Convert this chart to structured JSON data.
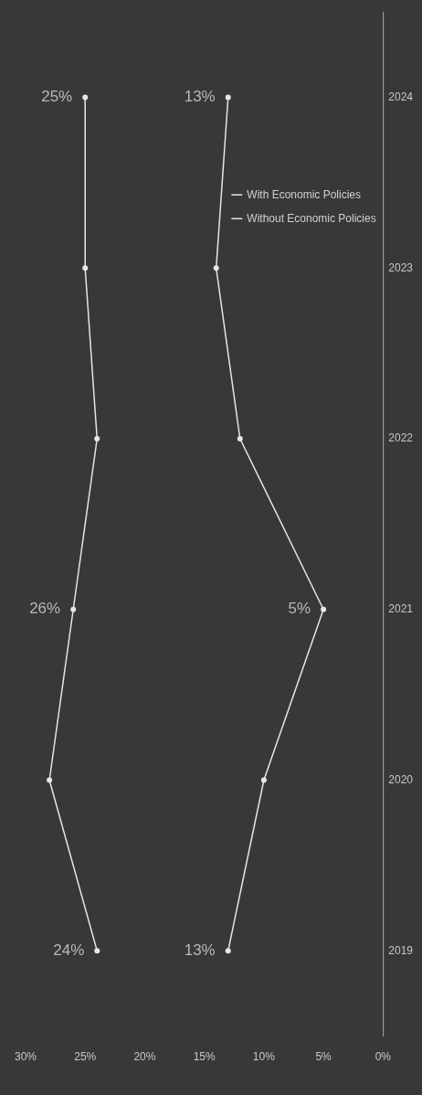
{
  "chart_data": {
    "type": "line",
    "orientation": "horizontal",
    "categories": [
      "2024",
      "2023",
      "2022",
      "2021",
      "2020",
      "2019"
    ],
    "series": [
      {
        "name": "With Economic Policies",
        "color": "#e6e6e6",
        "values": [
          25,
          25,
          24,
          26,
          28,
          24
        ],
        "value_labels": [
          "25%",
          null,
          null,
          "26%",
          null,
          "24%"
        ]
      },
      {
        "name": "Without Economic Policies",
        "color": "#e6e6e6",
        "values": [
          13,
          14,
          12,
          5,
          10,
          13
        ],
        "value_labels": [
          "13%",
          null,
          null,
          "5%",
          null,
          "13%"
        ]
      }
    ],
    "xlim": [
      30,
      0
    ],
    "xticks": [
      {
        "value": 30,
        "label": "30%"
      },
      {
        "value": 25,
        "label": "25%"
      },
      {
        "value": 20,
        "label": "20%"
      },
      {
        "value": 15,
        "label": "15%"
      },
      {
        "value": 10,
        "label": "10%"
      },
      {
        "value": 5,
        "label": "5%"
      },
      {
        "value": 0,
        "label": "0%"
      }
    ],
    "grid": false,
    "legend": "top right",
    "marker": "circle",
    "line_style": "solid"
  }
}
